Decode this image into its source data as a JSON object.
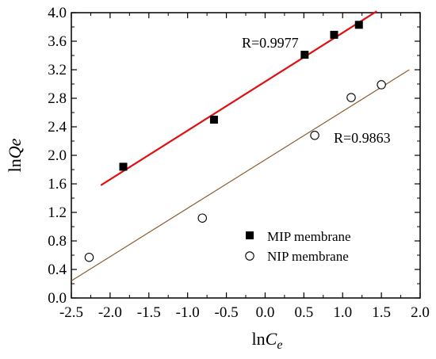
{
  "chart_data": {
    "type": "scatter",
    "title": "",
    "xlabel": {
      "prefix": "ln",
      "var": "C",
      "sub": "e"
    },
    "ylabel": {
      "prefix": "ln",
      "var": "Qe"
    },
    "xlim": [
      -2.5,
      2.0
    ],
    "ylim": [
      0.0,
      4.0
    ],
    "xticks": [
      "-2.5",
      "-2.0",
      "-1.5",
      "-1.0",
      "-0.5",
      "0.0",
      "0.5",
      "1.0",
      "1.5",
      "2.0"
    ],
    "yticks": [
      "0.0",
      "0.4",
      "0.8",
      "1.2",
      "1.6",
      "2.0",
      "2.4",
      "2.8",
      "3.2",
      "3.6",
      "4.0"
    ],
    "legend_position": "lower-right",
    "series": [
      {
        "name": "MIP membrane",
        "marker": "filled-square",
        "color": "#000000",
        "x": [
          -1.83,
          -0.66,
          0.51,
          0.89,
          1.21
        ],
        "y": [
          1.84,
          2.5,
          3.41,
          3.69,
          3.83
        ],
        "fit": {
          "x": [
            -2.12,
            1.44
          ],
          "y": [
            1.58,
            4.02
          ],
          "color": "#e01010",
          "label": "R=0.9977"
        }
      },
      {
        "name": "NIP membrane",
        "marker": "open-circle",
        "color": "#000000",
        "x": [
          -2.27,
          -0.81,
          0.64,
          1.11,
          1.5
        ],
        "y": [
          0.57,
          1.12,
          2.28,
          2.81,
          2.99
        ],
        "fit": {
          "x": [
            -2.5,
            1.86
          ],
          "y": [
            0.24,
            3.2
          ],
          "color": "#8b5a2b",
          "label": "R=0.9863"
        }
      }
    ]
  }
}
